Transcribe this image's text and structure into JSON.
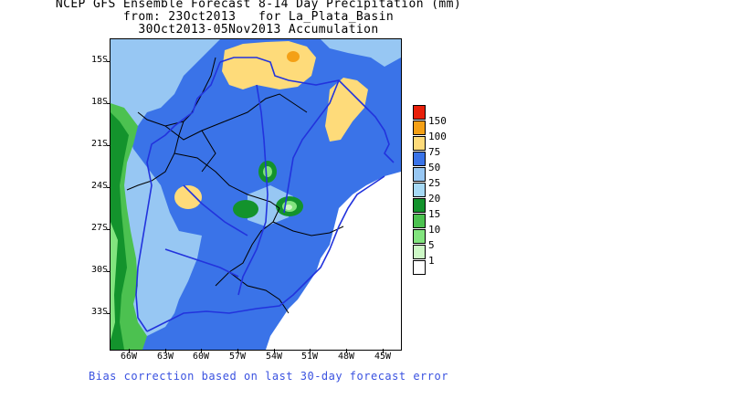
{
  "title": {
    "line1": "NCEP GFS Ensemble Forecast 8-14 Day Precipitation (mm)",
    "line2": "from: 23Oct2013   for La_Plata_Basin",
    "line3": "30Oct2013-05Nov2013 Accumulation"
  },
  "map": {
    "lat_labels": [
      "15S",
      "18S",
      "21S",
      "24S",
      "27S",
      "30S",
      "33S"
    ],
    "lon_labels": [
      "66W",
      "63W",
      "60W",
      "57W",
      "54W",
      "51W",
      "48W",
      "45W"
    ]
  },
  "legend": {
    "values": [
      "150",
      "100",
      "75",
      "50",
      "25",
      "20",
      "15",
      "10",
      "5",
      "1"
    ],
    "colors": [
      "#e8200a",
      "#f4a016",
      "#fedb7a",
      "#3a73e8",
      "#97c7f3",
      "#a6d9f5",
      "#13932c",
      "#4cc150",
      "#82e47e",
      "#cdf8c6",
      "#ffffff"
    ]
  },
  "footer": "Bias correction based on last 30-day forecast error"
}
